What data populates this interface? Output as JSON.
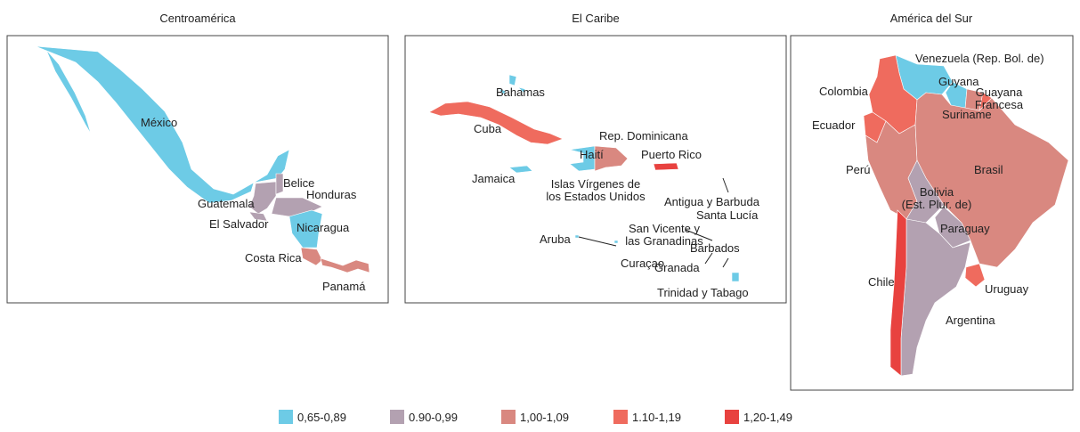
{
  "panels": [
    {
      "title": "Centroamérica",
      "labels": [
        [
          "México"
        ],
        [
          "Belice"
        ],
        [
          "Honduras"
        ],
        [
          "Guatemala"
        ],
        [
          "El Salvador"
        ],
        [
          "Nicaragua"
        ],
        [
          "Costa Rica"
        ],
        [
          "Panamá"
        ]
      ]
    },
    {
      "title": "El Caribe",
      "labels": [
        [
          "Bahamas"
        ],
        [
          "Cuba"
        ],
        [
          "Rep. Dominicana"
        ],
        [
          "Haití"
        ],
        [
          "Puerto Rico"
        ],
        [
          "Jamaica"
        ],
        [
          "Islas Vírgenes de",
          "los Estados Unidos"
        ],
        [
          "Antigua y Barbuda"
        ],
        [
          "Santa Lucía"
        ],
        [
          "San Vicente y",
          "las Granadinas"
        ],
        [
          "Aruba"
        ],
        [
          "Barbados"
        ],
        [
          "Curaçao"
        ],
        [
          "Granada"
        ],
        [
          "Trinidad y Tabago"
        ]
      ]
    },
    {
      "title": "América del Sur",
      "labels": [
        [
          "Venezuela (Rep. Bol. de)"
        ],
        [
          "Guyana"
        ],
        [
          "Guayana",
          "Francesa"
        ],
        [
          "Colombia"
        ],
        [
          "Suriname"
        ],
        [
          "Ecuador"
        ],
        [
          "Perú"
        ],
        [
          "Brasil"
        ],
        [
          "Bolivia",
          "(Est. Plur. de)"
        ],
        [
          "Paraguay"
        ],
        [
          "Chile"
        ],
        [
          "Uruguay"
        ],
        [
          "Argentina"
        ]
      ]
    }
  ],
  "legend": [
    {
      "label": "0,65-0,89",
      "color": "#6dcbe6"
    },
    {
      "label": "0.90-0,99",
      "color": "#b3a1b1"
    },
    {
      "label": "1,00-1,09",
      "color": "#d98880"
    },
    {
      "label": "1.10-1,19",
      "color": "#ef6b5e"
    },
    {
      "label": "1,20-1,49",
      "color": "#e8423f"
    }
  ]
}
